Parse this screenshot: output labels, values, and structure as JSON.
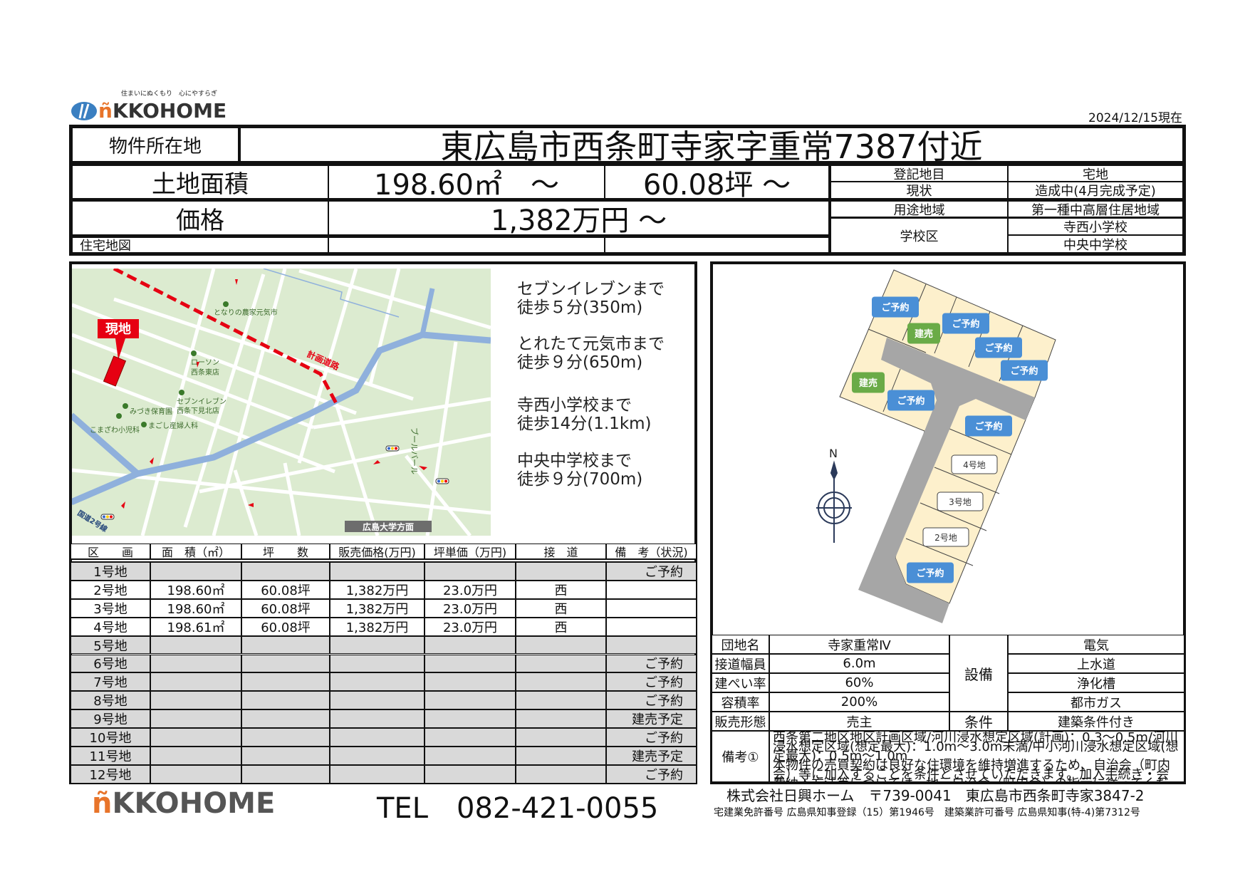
{
  "brand": {
    "tagline": "住まいにぬくもり　心にやすらぎ",
    "logo_text": "NIKKOHOME",
    "logo_prefix": "ñ",
    "logo_rest": "KKOHOME",
    "accent": "#e8742a",
    "blue": "#3a7fc1"
  },
  "as_of": "2024/12/15現在",
  "summary": {
    "location_label": "物件所在地",
    "location_value": "東広島市西条町寺家字重常7387付近",
    "area_label": "土地面積",
    "area_sqm": "198.60㎡　～",
    "area_tsubo": "60.08坪 ～",
    "price_label": "価格",
    "price_value": "1,382万円 ～",
    "map_label": "住宅地図",
    "details": [
      {
        "label": "登記地目",
        "value": "宅地"
      },
      {
        "label": "現状",
        "value": "造成中(4月完成予定)"
      },
      {
        "label": "用途地域",
        "value": "第一種中高層住居地域"
      }
    ],
    "school_label": "学校区",
    "schools": [
      "寺西小学校",
      "中央中学校"
    ]
  },
  "map": {
    "site_label": "現地",
    "planned_road": "計画道路",
    "route2": "国道2号線",
    "boulevard": "ブールバール",
    "direction": "広島大学方面",
    "places": {
      "tonari": "となりの農家元気市",
      "lawson1": "ローソン",
      "lawson2": "西条東店",
      "seven1": "セブンイレブン",
      "seven2": "西条下見北店",
      "mizuki": "みづき保育園",
      "komazawa": "こまざわ小児科",
      "magoshi": "まごし産婦人科"
    },
    "colors": {
      "land": "#dcebd0",
      "road": "#ffffff",
      "river": "#8fb0dc",
      "marker": "#e60012"
    }
  },
  "walking": [
    {
      "line1": "セブンイレブンまで",
      "line2": "徒歩５分(350m)"
    },
    {
      "line1": "とれたて元気市まで",
      "line2": "徒歩９分(650m)"
    },
    {
      "line1": "寺西小学校まで",
      "line2": "徒歩14分(1.1km)"
    },
    {
      "line1": "中央中学校まで",
      "line2": "徒歩９分(700m)"
    }
  ],
  "table": {
    "headers": [
      "区　　画",
      "面　積（㎡）",
      "坪　　数",
      "販売価格(万円)",
      "坪単価（万円)",
      "接　道",
      "備　考（状況)"
    ],
    "rows": [
      {
        "lot": "1号地",
        "area": "",
        "tsubo": "",
        "price": "",
        "unit": "",
        "road": "",
        "note": "ご予約",
        "gray": true
      },
      {
        "lot": "2号地",
        "area": "198.60㎡",
        "tsubo": "60.08坪",
        "price": "1,382万円",
        "unit": "23.0万円",
        "road": "西",
        "note": "",
        "gray": false
      },
      {
        "lot": "3号地",
        "area": "198.60㎡",
        "tsubo": "60.08坪",
        "price": "1,382万円",
        "unit": "23.0万円",
        "road": "西",
        "note": "",
        "gray": false
      },
      {
        "lot": "4号地",
        "area": "198.61㎡",
        "tsubo": "60.08坪",
        "price": "1,382万円",
        "unit": "23.0万円",
        "road": "西",
        "note": "",
        "gray": false
      },
      {
        "lot": "5号地",
        "area": "",
        "tsubo": "",
        "price": "",
        "unit": "",
        "road": "",
        "note": "",
        "gray": true
      },
      {
        "lot": "6号地",
        "area": "",
        "tsubo": "",
        "price": "",
        "unit": "",
        "road": "",
        "note": "ご予約",
        "gray": true
      },
      {
        "lot": "7号地",
        "area": "",
        "tsubo": "",
        "price": "",
        "unit": "",
        "road": "",
        "note": "ご予約",
        "gray": true
      },
      {
        "lot": "8号地",
        "area": "",
        "tsubo": "",
        "price": "",
        "unit": "",
        "road": "",
        "note": "ご予約",
        "gray": true
      },
      {
        "lot": "9号地",
        "area": "",
        "tsubo": "",
        "price": "",
        "unit": "",
        "road": "",
        "note": "建売予定",
        "gray": true
      },
      {
        "lot": "10号地",
        "area": "",
        "tsubo": "",
        "price": "",
        "unit": "",
        "road": "",
        "note": "ご予約",
        "gray": true
      },
      {
        "lot": "11号地",
        "area": "",
        "tsubo": "",
        "price": "",
        "unit": "",
        "road": "",
        "note": "建売予定",
        "gray": true
      },
      {
        "lot": "12号地",
        "area": "",
        "tsubo": "",
        "price": "",
        "unit": "",
        "road": "",
        "note": "ご予約",
        "gray": true
      }
    ]
  },
  "plot": {
    "north": "N",
    "reserved": "ご予約",
    "built_for_sale": "建売",
    "lot4": "4号地",
    "lot3": "3号地",
    "lot2": "2号地",
    "colors": {
      "lot": "#fdf0cc",
      "road": "#a6a6a6",
      "reserved": "#4a8fd6",
      "built": "#6aab47"
    }
  },
  "info": {
    "rows": [
      {
        "label": "団地名",
        "value": "寺家重常Ⅳ"
      },
      {
        "label": "接道幅員",
        "value": "6.0m"
      },
      {
        "label": "建ぺい率",
        "value": "60%"
      },
      {
        "label": "容積率",
        "value": "200%"
      }
    ],
    "facility_label": "設備",
    "facilities": [
      "電気",
      "上水道",
      "浄化槽",
      "都市ガス"
    ],
    "sale_label": "販売形態",
    "sale_value": "売主",
    "condition_label": "条件",
    "condition_value": "建築条件付き",
    "notes_label": "備考①",
    "notes_1": "西条第二地区地区計画区域/河川浸水想定区域(計画)：0.3～0.5m/河川浸水想定区域(想定最大)：1.0m～3.0m未満/中小河川浸水想定区域(想定最大)：0.5m～1.0m",
    "notes_2": "本物件の売買契約は良好な住環境を維持増進するため、自治会（町内会）等に加入することを条件とさせていただきます。加入手続き・会費納入方法等については、地元自治会（町内会）の指示に従ってください。"
  },
  "footer": {
    "tel": "TEL　082-421-0055",
    "company": "株式会社日興ホーム　〒739-0041　東広島市西条町寺家3847-2",
    "license": "宅建業免許番号 広島県知事登録（15）第1946号　建築業許可番号 広島県知事(特-4)第7312号"
  }
}
